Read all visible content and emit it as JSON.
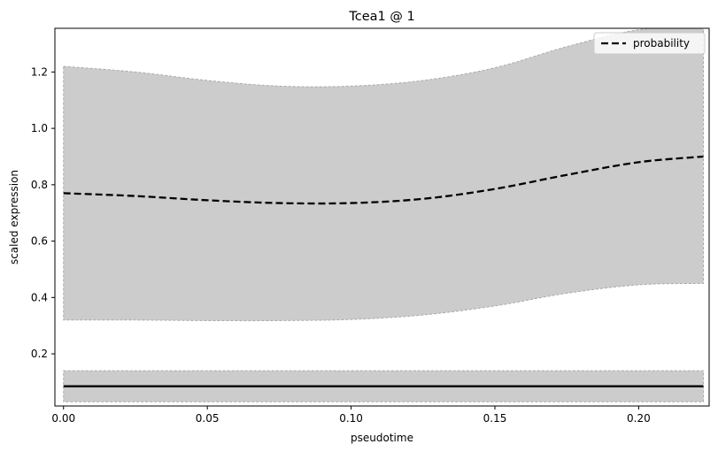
{
  "chart_data": {
    "type": "line",
    "title": "Tcea1 @ 1",
    "xlabel": "pseudotime",
    "ylabel": "scaled expression",
    "xlim": [
      -0.003,
      0.2245
    ],
    "ylim": [
      0.015,
      1.355
    ],
    "xticks": [
      {
        "value": 0.0,
        "label": "0.00"
      },
      {
        "value": 0.05,
        "label": "0.05"
      },
      {
        "value": 0.1,
        "label": "0.10"
      },
      {
        "value": 0.15,
        "label": "0.15"
      },
      {
        "value": 0.2,
        "label": "0.20"
      }
    ],
    "yticks": [
      {
        "value": 0.2,
        "label": "0.2"
      },
      {
        "value": 0.4,
        "label": "0.4"
      },
      {
        "value": 0.6,
        "label": "0.6"
      },
      {
        "value": 0.8,
        "label": "0.8"
      },
      {
        "value": 1.0,
        "label": "1.0"
      },
      {
        "value": 1.2,
        "label": "1.2"
      }
    ],
    "grid": false,
    "legend_position": "top-right",
    "series": [
      {
        "name": "probability",
        "style": "dashed",
        "color": "#000000",
        "x": [
          0.0,
          0.025,
          0.05,
          0.075,
          0.1,
          0.125,
          0.15,
          0.175,
          0.2,
          0.2225
        ],
        "y": [
          0.77,
          0.76,
          0.745,
          0.735,
          0.735,
          0.75,
          0.785,
          0.835,
          0.88,
          0.9
        ]
      },
      {
        "style": "solid",
        "color": "#000000",
        "x": [
          0.0,
          0.2225
        ],
        "y": [
          0.085,
          0.085
        ]
      }
    ],
    "bands": [
      {
        "color": "#cccccc",
        "edge_color": "#aaaaaa",
        "x": [
          0.0,
          0.025,
          0.05,
          0.075,
          0.1,
          0.125,
          0.15,
          0.175,
          0.2,
          0.2225
        ],
        "upper": [
          1.22,
          1.2,
          1.17,
          1.15,
          1.15,
          1.17,
          1.215,
          1.29,
          1.35,
          1.36
        ],
        "lower": [
          0.32,
          0.32,
          0.318,
          0.318,
          0.322,
          0.338,
          0.37,
          0.415,
          0.445,
          0.45
        ]
      },
      {
        "color": "#cccccc",
        "edge_color": "#aaaaaa",
        "x": [
          0.0,
          0.2225
        ],
        "upper": [
          0.14,
          0.14
        ],
        "lower": [
          0.03,
          0.03
        ]
      }
    ]
  }
}
